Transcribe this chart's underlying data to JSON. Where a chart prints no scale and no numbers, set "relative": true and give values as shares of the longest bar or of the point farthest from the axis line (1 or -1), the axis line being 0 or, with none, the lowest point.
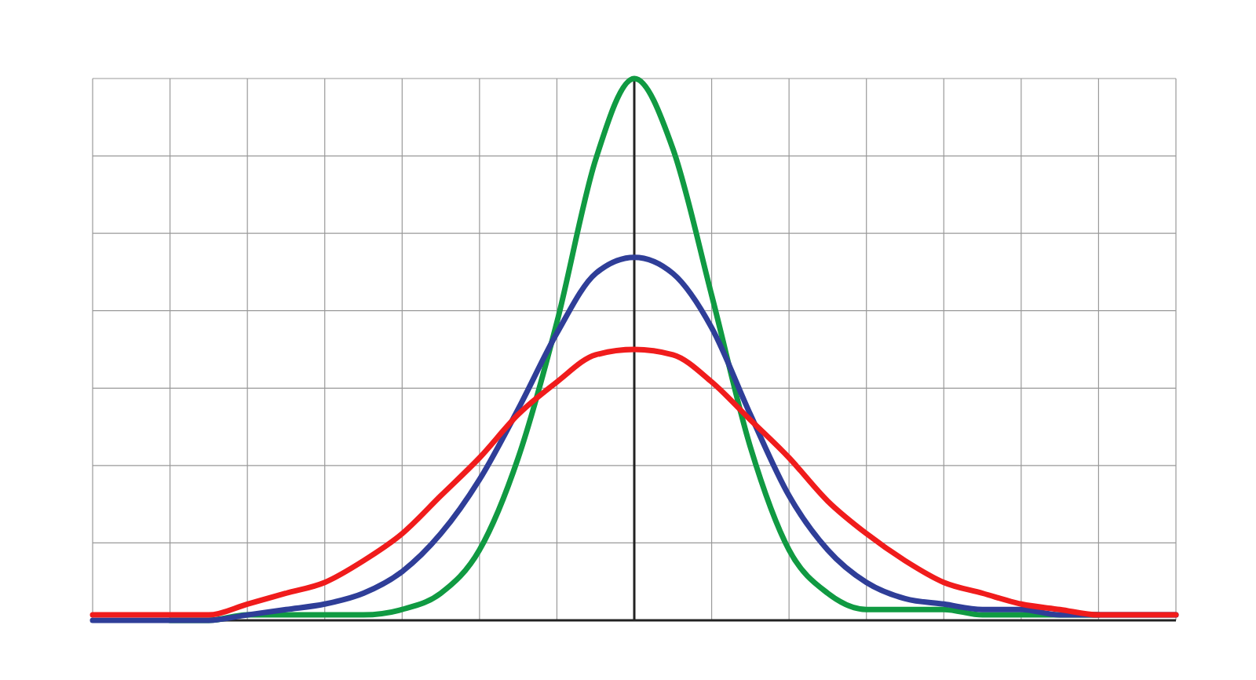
{
  "chart_data": {
    "type": "line",
    "relative": true,
    "grid": true,
    "marker": "none",
    "line_style": "solid",
    "categories": [
      null,
      null,
      null,
      null,
      null,
      null,
      null,
      null,
      null,
      null,
      null,
      null,
      null,
      null,
      null,
      null,
      null,
      null,
      null,
      null,
      null,
      null,
      null,
      null,
      null,
      null,
      null,
      null,
      null
    ],
    "series": [
      {
        "color": "#109a42",
        "values": [
          null,
          null,
          0,
          0,
          0.01,
          0.01,
          0.01,
          0.01,
          0.02,
          0.05,
          0.13,
          0.3,
          0.55,
          0.85,
          1,
          0.87,
          0.6,
          0.32,
          0.13,
          0.05,
          0.02,
          0.02,
          0.02,
          0.01,
          0.01,
          0.01,
          0.01,
          null,
          null
        ]
      },
      {
        "color": "#2f3e98",
        "values": [
          0,
          0,
          0,
          0,
          0.01,
          0.02,
          0.03,
          0.05,
          0.09,
          0.16,
          0.26,
          0.39,
          0.53,
          0.64,
          0.67,
          0.64,
          0.54,
          0.38,
          0.23,
          0.13,
          0.07,
          0.04,
          0.03,
          0.02,
          0.02,
          0.01,
          0.01,
          0.01,
          0.01
        ]
      },
      {
        "color": "#f01c1c",
        "values": [
          0.01,
          0.01,
          0.01,
          0.01,
          0.03,
          0.05,
          0.07,
          0.11,
          0.16,
          0.23,
          0.3,
          0.38,
          0.44,
          0.49,
          0.5,
          0.49,
          0.44,
          0.37,
          0.3,
          0.22,
          0.16,
          0.11,
          0.07,
          0.05,
          0.03,
          0.02,
          0.01,
          0.01,
          0.01
        ]
      }
    ]
  }
}
